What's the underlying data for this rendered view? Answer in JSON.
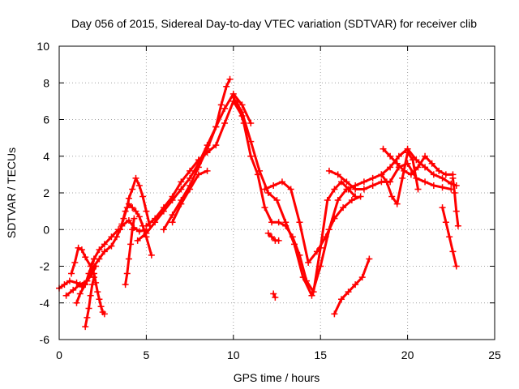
{
  "chart_data": {
    "type": "scatter",
    "title": "Day 056 of 2015, Sidereal Day-to-day VTEC variation (SDTVAR) for receiver clib",
    "xlabel": "GPS time / hours",
    "ylabel": "SDTVAR / TECUs",
    "xlim": [
      0,
      25
    ],
    "ylim": [
      -6,
      10
    ],
    "xticks": [
      "0",
      "5",
      "10",
      "15",
      "20",
      "25"
    ],
    "yticks": [
      "-6",
      "-4",
      "-2",
      "0",
      "2",
      "4",
      "6",
      "8",
      "10"
    ],
    "xtick_values": [
      0,
      5,
      10,
      15,
      20,
      25
    ],
    "ytick_values": [
      -6,
      -4,
      -2,
      0,
      2,
      4,
      6,
      8,
      10
    ],
    "grid": true,
    "marker": "+",
    "color": "#ff0000",
    "series": [
      {
        "x": [
          0.0,
          0.3,
          0.6,
          1.0,
          1.3,
          1.6,
          2.0,
          2.3,
          2.6,
          3.0,
          3.3,
          3.6,
          4.0,
          4.3,
          4.6,
          5.0
        ],
        "y": [
          -3.2,
          -3.0,
          -2.8,
          -2.9,
          -3.1,
          -2.8,
          -2.0,
          -1.6,
          -1.2,
          -0.9,
          -0.4,
          0.2,
          0.5,
          0.1,
          -0.1,
          0.0
        ]
      },
      {
        "x": [
          0.4,
          0.8,
          1.2,
          1.6,
          1.9,
          2.1
        ],
        "y": [
          -3.6,
          -3.3,
          -3.0,
          -2.8,
          -2.4,
          -2.0
        ]
      },
      {
        "x": [
          1.0,
          1.2,
          1.5,
          1.7,
          2.0,
          2.3,
          2.6,
          3.0,
          3.4
        ],
        "y": [
          -4.0,
          -3.5,
          -3.0,
          -2.4,
          -1.6,
          -1.1,
          -0.8,
          -0.4,
          0.0
        ]
      },
      {
        "x": [
          0.7,
          0.9,
          1.1,
          1.3,
          1.5,
          1.8,
          2.0
        ],
        "y": [
          -2.4,
          -1.8,
          -1.0,
          -1.1,
          -1.5,
          -2.0,
          -1.6
        ]
      },
      {
        "x": [
          1.5,
          1.6,
          1.7,
          1.8,
          1.9,
          2.0
        ],
        "y": [
          -5.3,
          -4.8,
          -4.3,
          -3.6,
          -3.0,
          -2.6
        ]
      },
      {
        "x": [
          2.0,
          2.1,
          2.2,
          2.3,
          2.4,
          2.5,
          2.6
        ],
        "y": [
          -2.4,
          -2.9,
          -3.4,
          -3.8,
          -4.2,
          -4.5,
          -4.6
        ]
      },
      {
        "x": [
          3.8,
          3.9,
          4.0,
          4.1,
          4.2,
          4.3
        ],
        "y": [
          -3.0,
          -2.4,
          -1.6,
          -0.8,
          0.0,
          0.6
        ]
      },
      {
        "x": [
          3.5,
          3.7,
          3.9,
          4.0,
          4.2,
          4.4,
          4.6,
          4.8,
          5.0,
          5.2
        ],
        "y": [
          0.0,
          0.6,
          1.2,
          1.7,
          2.2,
          2.8,
          2.4,
          1.8,
          1.0,
          0.2
        ]
      },
      {
        "x": [
          3.6,
          3.8,
          4.0,
          4.2,
          4.4,
          4.6,
          4.8,
          5.0,
          5.3
        ],
        "y": [
          0.3,
          1.0,
          1.4,
          1.2,
          1.0,
          0.7,
          0.2,
          -0.4,
          -1.4
        ]
      },
      {
        "x": [
          4.5,
          5.0,
          5.5,
          6.0,
          6.5,
          7.0,
          7.5,
          8.0,
          8.5,
          9.0,
          9.5,
          10.0,
          10.5,
          11.0
        ],
        "y": [
          -0.6,
          -0.2,
          0.4,
          1.0,
          1.6,
          2.2,
          2.8,
          3.6,
          4.6,
          5.6,
          6.6,
          7.4,
          6.8,
          5.8
        ]
      },
      {
        "x": [
          5.0,
          5.5,
          6.0,
          6.5,
          7.0,
          7.5,
          8.0,
          8.5,
          9.0,
          9.5,
          10.0,
          10.5
        ],
        "y": [
          0.2,
          0.6,
          1.2,
          1.8,
          2.6,
          3.2,
          3.8,
          4.2,
          4.6,
          5.8,
          7.0,
          6.2
        ]
      },
      {
        "x": [
          6.0,
          6.5,
          7.0,
          7.5,
          8.0,
          8.5,
          9.0,
          9.3,
          9.6,
          9.8
        ],
        "y": [
          0.0,
          0.8,
          1.6,
          2.4,
          3.4,
          4.4,
          5.6,
          6.8,
          7.8,
          8.2
        ]
      },
      {
        "x": [
          6.5,
          7.0,
          7.5,
          8.0,
          8.5
        ],
        "y": [
          0.4,
          1.4,
          2.2,
          3.0,
          3.2
        ]
      },
      {
        "x": [
          10.0,
          10.5,
          11.0,
          11.5,
          12.0,
          12.5,
          13.0,
          13.5,
          14.0,
          14.5,
          15.0,
          15.5,
          16.0,
          16.5,
          17.0,
          17.5,
          18.0,
          18.5,
          19.0,
          19.5,
          20.0,
          20.5,
          21.0,
          21.5,
          22.0,
          22.5,
          22.8
        ],
        "y": [
          7.2,
          6.4,
          4.8,
          3.2,
          2.0,
          1.6,
          0.4,
          -0.8,
          -2.6,
          -3.6,
          -2.0,
          0.0,
          1.6,
          2.2,
          2.4,
          2.6,
          2.8,
          3.0,
          3.4,
          4.0,
          4.4,
          3.8,
          3.4,
          3.0,
          2.8,
          2.5,
          2.4
        ]
      },
      {
        "x": [
          10.2,
          10.6,
          11.0,
          11.4,
          11.8,
          12.2,
          12.6,
          13.0,
          13.4,
          13.8,
          14.2,
          14.6,
          15.0,
          15.4,
          15.8,
          16.2,
          16.6,
          17.0
        ],
        "y": [
          7.0,
          5.8,
          4.0,
          3.0,
          1.2,
          0.4,
          0.4,
          0.2,
          -0.4,
          -1.4,
          -2.8,
          -3.4,
          -1.0,
          1.6,
          2.2,
          2.6,
          2.2,
          1.8
        ]
      },
      {
        "x": [
          11.8,
          12.3,
          12.8,
          13.3,
          13.8,
          14.3,
          14.8,
          15.3,
          15.8,
          16.3,
          16.8,
          17.3
        ],
        "y": [
          2.2,
          2.4,
          2.6,
          2.2,
          0.4,
          -1.8,
          -1.2,
          -0.4,
          0.6,
          1.2,
          1.6,
          1.8
        ]
      },
      {
        "x": [
          12.0,
          12.2,
          12.4,
          12.6
        ],
        "y": [
          -0.2,
          -0.4,
          -0.6,
          -0.6
        ]
      },
      {
        "x": [
          12.3,
          12.4
        ],
        "y": [
          -3.5,
          -3.7
        ]
      },
      {
        "x": [
          15.8,
          16.2,
          16.6,
          17.0,
          17.4,
          17.8
        ],
        "y": [
          -4.6,
          -3.8,
          -3.4,
          -3.0,
          -2.6,
          -1.6
        ]
      },
      {
        "x": [
          15.5,
          16.0,
          16.5,
          17.0,
          17.5,
          18.0,
          18.5,
          19.0,
          19.5,
          20.0,
          20.5,
          21.0,
          21.5,
          22.0,
          22.5
        ],
        "y": [
          3.2,
          3.0,
          2.6,
          2.2,
          2.2,
          2.4,
          2.6,
          2.6,
          3.4,
          3.6,
          2.8,
          2.6,
          2.4,
          2.3,
          2.2
        ]
      },
      {
        "x": [
          18.5,
          18.8,
          19.1,
          19.4,
          19.7,
          20.0,
          20.3,
          20.6
        ],
        "y": [
          3.0,
          2.6,
          1.8,
          1.4,
          2.8,
          4.2,
          3.8,
          2.2
        ]
      },
      {
        "x": [
          18.6,
          19.0,
          19.4,
          19.8,
          20.2,
          20.6,
          21.0,
          21.4,
          21.8,
          22.2,
          22.6
        ],
        "y": [
          4.4,
          4.0,
          3.6,
          3.2,
          3.0,
          3.4,
          4.0,
          3.6,
          3.2,
          3.0,
          3.0
        ]
      },
      {
        "x": [
          22.0,
          22.2,
          22.4,
          22.6,
          22.8
        ],
        "y": [
          1.2,
          0.4,
          -0.4,
          -1.2,
          -2.0
        ]
      },
      {
        "x": [
          22.6,
          22.7,
          22.8,
          22.9
        ],
        "y": [
          2.8,
          2.0,
          1.0,
          0.2
        ]
      }
    ]
  }
}
